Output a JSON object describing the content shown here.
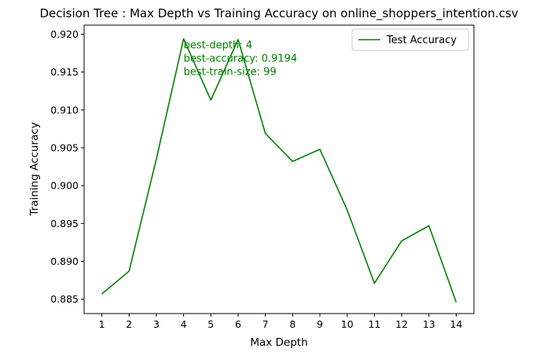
{
  "chart_data": {
    "type": "line",
    "title": "Decision Tree : Max Depth vs Training Accuracy on online_shoppers_intention.csv",
    "xlabel": "Max Depth",
    "ylabel": "Training Accuracy",
    "x": [
      1,
      2,
      3,
      4,
      5,
      6,
      7,
      8,
      9,
      10,
      11,
      12,
      13,
      14
    ],
    "x_ticks": [
      "1",
      "2",
      "3",
      "4",
      "5",
      "6",
      "7",
      "8",
      "9",
      "10",
      "11",
      "12",
      "13",
      "14"
    ],
    "y_ticks": [
      "0.885",
      "0.890",
      "0.895",
      "0.900",
      "0.905",
      "0.910",
      "0.915",
      "0.920"
    ],
    "xlim": [
      0.35,
      14.65
    ],
    "ylim": [
      0.8831,
      0.9212
    ],
    "series": [
      {
        "name": "Test Accuracy",
        "color": "#008000",
        "values": [
          0.8857,
          0.8887,
          0.9035,
          0.9194,
          0.9113,
          0.9193,
          0.9069,
          0.9032,
          0.9048,
          0.8968,
          0.8871,
          0.8927,
          0.8947,
          0.8846
        ]
      }
    ],
    "annotations": [
      {
        "text": "best-depth: 4",
        "x": 4,
        "y": 0.9194
      },
      {
        "text": "best-accuracy: 0.9194",
        "x": 4,
        "y": 0.9194
      },
      {
        "text": "best-train-size: 99",
        "x": 4,
        "y": 0.9194
      }
    ],
    "annotation_color": "#008000",
    "legend_position": "upper right",
    "grid": false
  }
}
